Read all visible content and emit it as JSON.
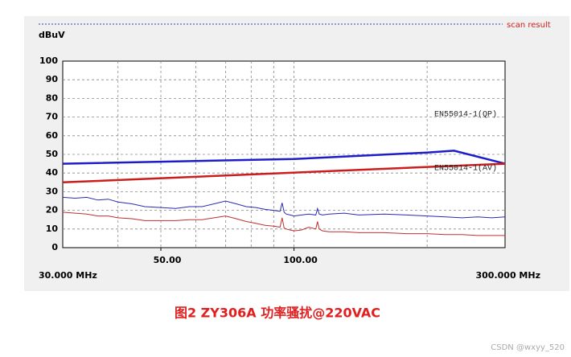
{
  "chart_data": {
    "type": "line",
    "y_label": "dBuV",
    "header": "scan result",
    "caption": "图2 ZY306A 功率骚扰@220VAC",
    "watermark": "CSDN @wxyy_520",
    "x_log": true,
    "xlim": [
      30,
      300
    ],
    "xlim_labels": [
      "30.000 MHz",
      "300.000 MHz"
    ],
    "xticks": [
      {
        "value": 50,
        "label": "50.00"
      },
      {
        "value": 100,
        "label": "100.00"
      }
    ],
    "xgrid": [
      40,
      50,
      60,
      70,
      80,
      90,
      100,
      200
    ],
    "ylim": [
      0,
      100
    ],
    "yticks": [
      0,
      10,
      20,
      30,
      40,
      50,
      60,
      70,
      80,
      90,
      100
    ],
    "grid": true,
    "x": [
      30,
      32,
      34,
      36,
      38,
      40,
      43,
      46,
      50,
      54,
      58,
      62,
      66,
      70,
      74,
      78,
      82,
      86,
      90,
      93,
      94,
      95,
      96,
      98,
      100,
      104,
      108,
      112,
      113,
      114,
      116,
      120,
      130,
      140,
      160,
      180,
      200,
      220,
      240,
      260,
      280,
      300
    ],
    "series": [
      {
        "name": "EN55014-1(QP)",
        "color": "#1c1cc8",
        "width": 2.5,
        "x": [
          30,
          100,
          200,
          230,
          300
        ],
        "values": [
          45,
          47.5,
          51,
          52,
          45
        ]
      },
      {
        "name": "EN55014-1(AV)",
        "color": "#cc1c1c",
        "width": 2.5,
        "x": [
          30,
          300
        ],
        "values": [
          35,
          45
        ]
      },
      {
        "color": "#2a2ab0",
        "width": 1,
        "values": [
          27,
          26.5,
          27,
          25.5,
          26,
          24.5,
          23.5,
          22,
          21.5,
          21,
          22,
          22,
          23.5,
          25,
          23.5,
          22,
          21.5,
          20.5,
          20,
          19.5,
          24,
          19,
          18,
          17.5,
          17,
          17.5,
          18,
          17.5,
          21,
          18,
          17.5,
          18,
          18.5,
          17.5,
          18,
          17.5,
          17,
          16.5,
          16,
          16.5,
          16,
          16.5
        ]
      },
      {
        "color": "#c03030",
        "width": 1,
        "values": [
          19,
          18.5,
          18,
          17,
          17,
          16,
          15.5,
          14.5,
          14.5,
          14.5,
          15,
          15,
          16,
          17,
          15.5,
          14,
          13,
          12,
          11.5,
          11,
          16,
          10.5,
          10,
          9.5,
          9,
          9.5,
          11,
          10,
          14,
          10,
          9,
          8.5,
          8.5,
          8,
          8,
          7.5,
          7.5,
          7,
          7,
          6.5,
          6.5,
          6.5
        ]
      }
    ]
  }
}
